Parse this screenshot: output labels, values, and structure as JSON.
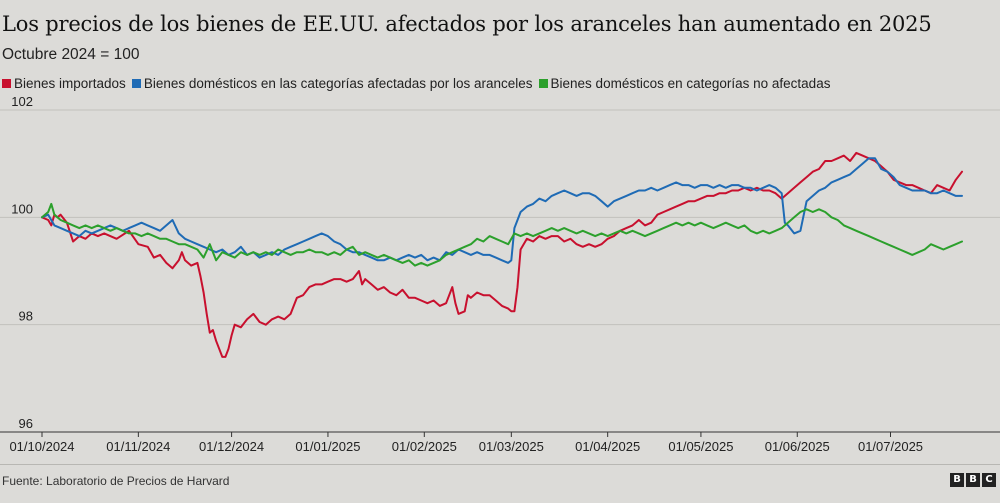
{
  "chart_data": {
    "type": "line",
    "title": "Los precios de los bienes de EE.UU. afectados por los aranceles han aumentado en 2025",
    "subtitle": "Octubre 2024 = 100",
    "xlabel": "",
    "ylabel": "",
    "ylim": [
      96,
      102
    ],
    "yticks": [
      96,
      98,
      100,
      102
    ],
    "ytick_labels": [
      "96",
      "98",
      "100",
      "102"
    ],
    "x_range_days": [
      0,
      296
    ],
    "xticks_days": [
      0,
      31,
      61,
      92,
      123,
      151,
      182,
      212,
      243,
      273
    ],
    "xtick_labels": [
      "01/10/2024",
      "01/11/2024",
      "01/12/2024",
      "01/01/2025",
      "01/02/2025",
      "01/03/2025",
      "01/04/2025",
      "01/05/2025",
      "01/06/2025",
      "01/07/2025"
    ],
    "grid": true,
    "series": [
      {
        "name": "Bienes importados",
        "color": "#c8102e",
        "x": [
          0,
          2,
          3,
          4,
          5,
          6,
          8,
          10,
          12,
          14,
          16,
          18,
          20,
          24,
          28,
          31,
          34,
          36,
          38,
          40,
          42,
          44,
          45,
          46,
          48,
          50,
          51,
          52,
          53,
          54,
          55,
          56,
          57,
          58,
          59,
          60,
          61,
          62,
          64,
          66,
          68,
          70,
          72,
          74,
          76,
          78,
          80,
          82,
          84,
          86,
          88,
          90,
          92,
          94,
          96,
          98,
          100,
          102,
          103,
          104,
          106,
          108,
          110,
          112,
          114,
          116,
          118,
          120,
          122,
          124,
          126,
          128,
          130,
          132,
          133,
          134,
          136,
          137,
          138,
          140,
          142,
          144,
          146,
          148,
          150,
          151,
          152,
          153,
          154,
          156,
          158,
          160,
          162,
          164,
          166,
          168,
          170,
          172,
          174,
          176,
          178,
          180,
          182,
          184,
          186,
          188,
          190,
          192,
          194,
          196,
          198,
          200,
          202,
          204,
          206,
          208,
          210,
          212,
          214,
          216,
          218,
          220,
          222,
          224,
          226,
          228,
          230,
          232,
          234,
          236,
          238,
          240,
          242,
          244,
          246,
          248,
          250,
          252,
          254,
          256,
          258,
          260,
          262,
          264,
          266,
          268,
          270,
          272,
          274,
          276,
          278,
          280,
          282,
          284,
          286,
          288,
          290,
          292,
          294,
          296
        ],
        "values": [
          100.0,
          99.95,
          99.85,
          100.05,
          100.0,
          100.05,
          99.9,
          99.55,
          99.65,
          99.6,
          99.7,
          99.65,
          99.7,
          99.6,
          99.75,
          99.5,
          99.45,
          99.25,
          99.3,
          99.15,
          99.05,
          99.2,
          99.35,
          99.2,
          99.1,
          99.15,
          98.9,
          98.6,
          98.2,
          97.85,
          97.9,
          97.7,
          97.55,
          97.4,
          97.4,
          97.55,
          97.8,
          98.0,
          97.95,
          98.1,
          98.2,
          98.05,
          98.0,
          98.1,
          98.15,
          98.1,
          98.2,
          98.5,
          98.55,
          98.7,
          98.75,
          98.75,
          98.8,
          98.85,
          98.85,
          98.8,
          98.85,
          99.0,
          98.75,
          98.85,
          98.75,
          98.65,
          98.7,
          98.6,
          98.55,
          98.65,
          98.5,
          98.5,
          98.45,
          98.4,
          98.45,
          98.35,
          98.4,
          98.7,
          98.4,
          98.2,
          98.25,
          98.55,
          98.5,
          98.6,
          98.55,
          98.55,
          98.45,
          98.35,
          98.3,
          98.25,
          98.25,
          98.7,
          99.4,
          99.6,
          99.55,
          99.65,
          99.6,
          99.65,
          99.65,
          99.55,
          99.6,
          99.5,
          99.45,
          99.5,
          99.45,
          99.5,
          99.6,
          99.65,
          99.75,
          99.8,
          99.85,
          99.95,
          99.85,
          99.9,
          100.05,
          100.1,
          100.15,
          100.2,
          100.25,
          100.3,
          100.3,
          100.35,
          100.4,
          100.4,
          100.45,
          100.45,
          100.5,
          100.5,
          100.55,
          100.5,
          100.55,
          100.5,
          100.5,
          100.45,
          100.35,
          100.45,
          100.55,
          100.65,
          100.75,
          100.85,
          100.9,
          101.05,
          101.05,
          101.1,
          101.15,
          101.05,
          101.2,
          101.15,
          101.1,
          101.05,
          100.95,
          100.85,
          100.7,
          100.65,
          100.6,
          100.6,
          100.55,
          100.5,
          100.45,
          100.6,
          100.55,
          100.5,
          100.7,
          100.85
        ]
      },
      {
        "name": "Bienes domésticos en las categorías afectadas por los aranceles",
        "color": "#1f6bb5",
        "x": [
          0,
          2,
          4,
          6,
          8,
          10,
          12,
          14,
          16,
          18,
          20,
          22,
          24,
          26,
          28,
          30,
          32,
          34,
          36,
          38,
          40,
          42,
          44,
          46,
          48,
          50,
          52,
          54,
          56,
          58,
          60,
          62,
          64,
          66,
          68,
          70,
          72,
          74,
          76,
          78,
          80,
          82,
          84,
          86,
          88,
          90,
          92,
          94,
          96,
          98,
          100,
          102,
          104,
          106,
          108,
          110,
          112,
          114,
          116,
          118,
          120,
          122,
          124,
          126,
          128,
          130,
          132,
          134,
          136,
          138,
          140,
          142,
          144,
          146,
          148,
          150,
          151,
          152,
          154,
          156,
          158,
          160,
          162,
          164,
          166,
          168,
          170,
          172,
          174,
          176,
          178,
          180,
          182,
          184,
          186,
          188,
          190,
          192,
          194,
          196,
          198,
          200,
          202,
          204,
          206,
          208,
          210,
          212,
          214,
          216,
          218,
          220,
          222,
          224,
          226,
          228,
          230,
          232,
          234,
          236,
          238,
          239,
          240,
          242,
          244,
          246,
          248,
          250,
          252,
          254,
          256,
          258,
          260,
          262,
          264,
          266,
          268,
          270,
          272,
          274,
          276,
          278,
          280,
          282,
          284,
          286,
          288,
          290,
          292,
          294,
          296
        ],
        "values": [
          100.0,
          100.05,
          99.85,
          99.8,
          99.75,
          99.7,
          99.65,
          99.75,
          99.7,
          99.75,
          99.8,
          99.85,
          99.8,
          99.75,
          99.8,
          99.85,
          99.9,
          99.85,
          99.8,
          99.75,
          99.85,
          99.95,
          99.7,
          99.6,
          99.55,
          99.5,
          99.45,
          99.4,
          99.35,
          99.4,
          99.3,
          99.35,
          99.45,
          99.3,
          99.35,
          99.25,
          99.3,
          99.35,
          99.3,
          99.4,
          99.45,
          99.5,
          99.55,
          99.6,
          99.65,
          99.7,
          99.65,
          99.55,
          99.5,
          99.4,
          99.35,
          99.35,
          99.3,
          99.25,
          99.2,
          99.2,
          99.25,
          99.2,
          99.25,
          99.3,
          99.25,
          99.3,
          99.2,
          99.25,
          99.2,
          99.35,
          99.3,
          99.4,
          99.35,
          99.3,
          99.35,
          99.3,
          99.3,
          99.25,
          99.2,
          99.15,
          99.2,
          99.8,
          100.1,
          100.2,
          100.25,
          100.35,
          100.3,
          100.4,
          100.45,
          100.5,
          100.45,
          100.4,
          100.45,
          100.45,
          100.4,
          100.3,
          100.2,
          100.3,
          100.35,
          100.4,
          100.45,
          100.5,
          100.5,
          100.55,
          100.5,
          100.55,
          100.6,
          100.65,
          100.6,
          100.6,
          100.55,
          100.6,
          100.6,
          100.55,
          100.6,
          100.55,
          100.6,
          100.6,
          100.55,
          100.55,
          100.5,
          100.55,
          100.6,
          100.55,
          100.45,
          99.9,
          99.85,
          99.7,
          99.75,
          100.3,
          100.4,
          100.5,
          100.55,
          100.65,
          100.7,
          100.75,
          100.8,
          100.9,
          101.0,
          101.1,
          101.1,
          100.9,
          100.85,
          100.75,
          100.6,
          100.55,
          100.5,
          100.5,
          100.5,
          100.45,
          100.45,
          100.5,
          100.45,
          100.4,
          100.4
        ]
      },
      {
        "name": "Bienes domésticos en categorías no afectadas",
        "color": "#2ca02c",
        "x": [
          0,
          2,
          3,
          4,
          5,
          6,
          8,
          10,
          12,
          14,
          16,
          18,
          20,
          22,
          24,
          26,
          28,
          30,
          32,
          34,
          36,
          38,
          40,
          42,
          44,
          46,
          48,
          50,
          52,
          54,
          56,
          58,
          60,
          62,
          64,
          66,
          68,
          70,
          72,
          74,
          76,
          78,
          80,
          82,
          84,
          86,
          88,
          90,
          92,
          94,
          96,
          98,
          100,
          102,
          104,
          106,
          108,
          110,
          112,
          114,
          116,
          118,
          120,
          122,
          124,
          126,
          128,
          130,
          132,
          134,
          136,
          138,
          140,
          142,
          144,
          146,
          148,
          150,
          152,
          154,
          156,
          158,
          160,
          162,
          164,
          166,
          168,
          170,
          172,
          174,
          176,
          178,
          180,
          182,
          184,
          186,
          188,
          190,
          192,
          194,
          196,
          198,
          200,
          202,
          204,
          206,
          208,
          210,
          212,
          214,
          216,
          218,
          220,
          222,
          224,
          226,
          228,
          230,
          232,
          234,
          236,
          238,
          240,
          242,
          244,
          246,
          248,
          250,
          252,
          254,
          256,
          258,
          260,
          262,
          264,
          266,
          268,
          270,
          272,
          274,
          276,
          278,
          280,
          282,
          284,
          286,
          288,
          290,
          292,
          294,
          296
        ],
        "values": [
          100.0,
          100.1,
          100.25,
          100.05,
          100.0,
          99.95,
          99.9,
          99.85,
          99.8,
          99.85,
          99.8,
          99.85,
          99.8,
          99.75,
          99.8,
          99.75,
          99.7,
          99.7,
          99.65,
          99.7,
          99.65,
          99.6,
          99.6,
          99.55,
          99.5,
          99.5,
          99.45,
          99.4,
          99.25,
          99.5,
          99.2,
          99.35,
          99.3,
          99.25,
          99.35,
          99.3,
          99.35,
          99.3,
          99.35,
          99.3,
          99.4,
          99.35,
          99.3,
          99.35,
          99.35,
          99.4,
          99.35,
          99.35,
          99.3,
          99.35,
          99.3,
          99.4,
          99.45,
          99.3,
          99.35,
          99.3,
          99.25,
          99.3,
          99.25,
          99.2,
          99.15,
          99.2,
          99.1,
          99.15,
          99.1,
          99.15,
          99.2,
          99.3,
          99.35,
          99.4,
          99.45,
          99.5,
          99.6,
          99.55,
          99.65,
          99.6,
          99.55,
          99.5,
          99.7,
          99.65,
          99.7,
          99.65,
          99.7,
          99.75,
          99.8,
          99.75,
          99.8,
          99.75,
          99.7,
          99.75,
          99.7,
          99.65,
          99.7,
          99.65,
          99.7,
          99.75,
          99.7,
          99.75,
          99.7,
          99.65,
          99.7,
          99.75,
          99.8,
          99.85,
          99.9,
          99.85,
          99.9,
          99.85,
          99.9,
          99.85,
          99.8,
          99.85,
          99.9,
          99.85,
          99.8,
          99.85,
          99.75,
          99.7,
          99.75,
          99.7,
          99.75,
          99.8,
          99.9,
          100.0,
          100.1,
          100.15,
          100.1,
          100.15,
          100.1,
          100.0,
          99.95,
          99.85,
          99.8,
          99.75,
          99.7,
          99.65,
          99.6,
          99.55,
          99.5,
          99.45,
          99.4,
          99.35,
          99.3,
          99.35,
          99.4,
          99.5,
          99.45,
          99.4,
          99.45,
          99.5,
          99.55
        ]
      }
    ]
  },
  "source": "Fuente: Laboratorio de Precios de Harvard",
  "logo": {
    "letters": [
      "B",
      "B",
      "C"
    ]
  }
}
